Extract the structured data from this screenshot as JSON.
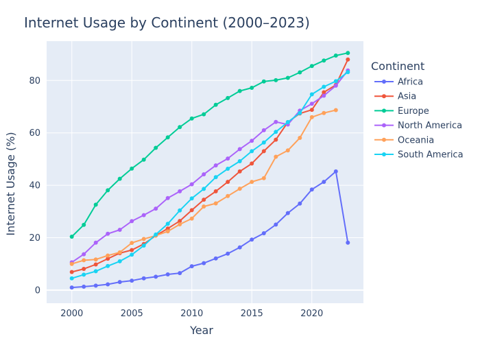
{
  "chart_data": {
    "type": "line",
    "title": "Internet Usage by Continent (2000–2023)",
    "xlabel": "Year",
    "ylabel": "Internet Usage (%)",
    "xlim": [
      1997.9,
      2024.3
    ],
    "ylim": [
      -5,
      95
    ],
    "xticks": [
      2000,
      2005,
      2010,
      2015,
      2020
    ],
    "yticks": [
      0,
      20,
      40,
      60,
      80
    ],
    "grid": true,
    "legend_title": "Continent",
    "legend_position": "right",
    "x": [
      2000,
      2001,
      2002,
      2003,
      2004,
      2005,
      2006,
      2007,
      2008,
      2009,
      2010,
      2011,
      2012,
      2013,
      2014,
      2015,
      2016,
      2017,
      2018,
      2019,
      2020,
      2021,
      2022,
      2023
    ],
    "series": [
      {
        "name": "Africa",
        "color": "#636efa",
        "values": [
          1.0,
          1.3,
          1.7,
          2.2,
          3.1,
          3.6,
          4.5,
          5.1,
          6.0,
          6.5,
          9.1,
          10.3,
          12.1,
          13.9,
          16.3,
          19.3,
          21.7,
          25.0,
          29.4,
          33.0,
          38.4,
          41.3,
          45.3,
          18.1
        ]
      },
      {
        "name": "Asia",
        "color": "#ef553b",
        "values": [
          6.9,
          8.1,
          9.8,
          12.0,
          14.1,
          15.3,
          17.6,
          20.8,
          23.5,
          26.4,
          30.5,
          34.5,
          37.7,
          41.3,
          45.3,
          48.3,
          53.0,
          57.4,
          64.1,
          67.4,
          68.8,
          75.5,
          78.3,
          88.0
        ]
      },
      {
        "name": "Europe",
        "color": "#00cc96",
        "values": [
          20.4,
          24.9,
          32.6,
          38.1,
          42.5,
          46.4,
          49.8,
          54.3,
          58.3,
          62.2,
          65.5,
          67.1,
          70.7,
          73.3,
          76.0,
          77.2,
          79.6,
          80.1,
          81.0,
          83.1,
          85.5,
          87.6,
          89.5,
          90.5
        ]
      },
      {
        "name": "North America",
        "color": "#ab63fa",
        "values": [
          10.6,
          13.7,
          18.1,
          21.5,
          23.0,
          26.3,
          28.6,
          31.1,
          35.1,
          37.7,
          40.4,
          44.2,
          47.6,
          50.2,
          53.8,
          57.0,
          61.0,
          64.2,
          63.2,
          68.5,
          71.1,
          74.2,
          78.0,
          83.8
        ]
      },
      {
        "name": "Oceania",
        "color": "#ffa15a",
        "values": [
          10.0,
          11.4,
          11.7,
          13.2,
          14.4,
          18.0,
          19.5,
          20.8,
          22.4,
          25.1,
          27.3,
          31.9,
          33.1,
          35.9,
          38.7,
          41.3,
          42.7,
          50.9,
          53.3,
          58.1,
          66.0,
          67.6,
          68.7,
          null
        ]
      },
      {
        "name": "South America",
        "color": "#19d3f3",
        "values": [
          4.5,
          5.9,
          7.2,
          9.2,
          11.0,
          13.5,
          17.0,
          21.2,
          25.3,
          30.4,
          35.0,
          38.6,
          43.1,
          46.3,
          49.2,
          53.0,
          56.3,
          60.4,
          64.1,
          67.6,
          74.7,
          77.6,
          79.7,
          83.2
        ]
      }
    ]
  }
}
